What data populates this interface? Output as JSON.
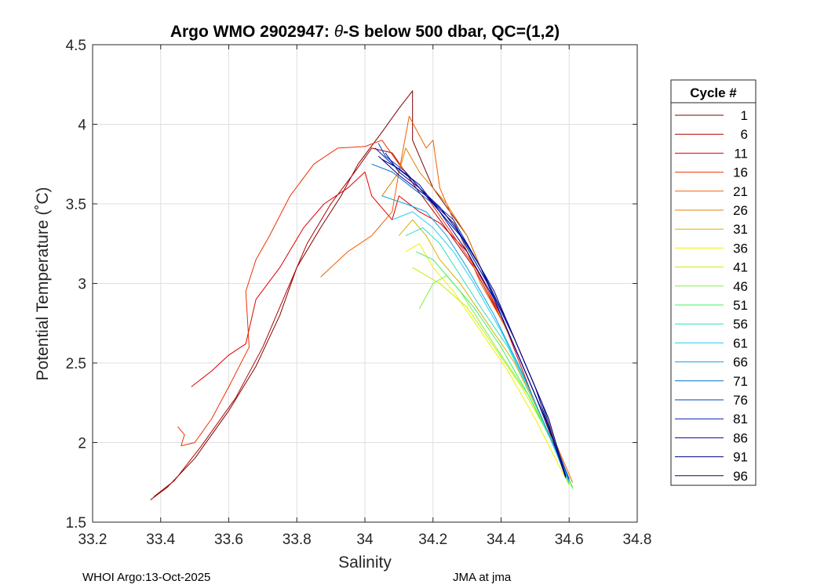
{
  "chart_data": {
    "type": "line",
    "title_prefix": "Argo WMO 2902947: ",
    "title_theta": "θ",
    "title_suffix": "-S below 500 dbar,  QC=(1,2)",
    "xlabel": "Salinity",
    "ylabel": "Potential Temperature (˚C)",
    "xlim": [
      33.2,
      34.8
    ],
    "ylim": [
      1.5,
      4.5
    ],
    "xticks": [
      33.2,
      33.4,
      33.6,
      33.8,
      34,
      34.2,
      34.4,
      34.6,
      34.8
    ],
    "xtick_labels": [
      "33.2",
      "33.4",
      "33.6",
      "33.8",
      "34",
      "34.2",
      "34.4",
      "34.6",
      "34.8"
    ],
    "yticks": [
      1.5,
      2,
      2.5,
      3,
      3.5,
      4,
      4.5
    ],
    "ytick_labels": [
      "1.5",
      "2",
      "2.5",
      "3",
      "3.5",
      "4",
      "4.5"
    ],
    "grid": true,
    "legend": {
      "title": "Cycle #",
      "placement": "right-outside",
      "entries": [
        "1",
        "6",
        "11",
        "16",
        "21",
        "26",
        "31",
        "36",
        "41",
        "46",
        "51",
        "56",
        "61",
        "66",
        "71",
        "76",
        "81",
        "86",
        "91",
        "96"
      ],
      "colors": [
        "#800000",
        "#b00000",
        "#e00000",
        "#f03000",
        "#f06000",
        "#e08000",
        "#d8b000",
        "#f0f000",
        "#c0f000",
        "#80f040",
        "#40f060",
        "#30e0c0",
        "#20d0f0",
        "#10a0e0",
        "#0070d0",
        "#0040c0",
        "#0020b0",
        "#0000a0",
        "#000090",
        "#000080"
      ]
    },
    "series": [
      {
        "name": "1",
        "color": "#800000",
        "points": [
          [
            33.37,
            1.64
          ],
          [
            33.42,
            1.72
          ],
          [
            33.5,
            1.9
          ],
          [
            33.6,
            2.2
          ],
          [
            33.68,
            2.48
          ],
          [
            33.75,
            2.8
          ],
          [
            33.8,
            3.1
          ],
          [
            33.87,
            3.35
          ],
          [
            33.93,
            3.55
          ],
          [
            33.98,
            3.75
          ],
          [
            34.05,
            3.95
          ],
          [
            34.1,
            4.1
          ],
          [
            34.14,
            4.21
          ],
          [
            34.14,
            3.9
          ],
          [
            34.2,
            3.6
          ],
          [
            34.3,
            3.3
          ],
          [
            34.4,
            2.8
          ],
          [
            34.5,
            2.3
          ],
          [
            34.59,
            1.8
          ]
        ]
      },
      {
        "name": "6",
        "color": "#b00000",
        "points": [
          [
            33.38,
            1.66
          ],
          [
            33.44,
            1.76
          ],
          [
            33.52,
            1.98
          ],
          [
            33.62,
            2.28
          ],
          [
            33.7,
            2.6
          ],
          [
            33.77,
            2.95
          ],
          [
            33.83,
            3.25
          ],
          [
            33.9,
            3.5
          ],
          [
            33.97,
            3.7
          ],
          [
            34.02,
            3.85
          ],
          [
            34.08,
            3.82
          ],
          [
            34.15,
            3.6
          ],
          [
            34.22,
            3.4
          ],
          [
            34.32,
            3.1
          ],
          [
            34.42,
            2.7
          ],
          [
            34.52,
            2.2
          ],
          [
            34.59,
            1.78
          ]
        ]
      },
      {
        "name": "11",
        "color": "#e00000",
        "points": [
          [
            33.49,
            2.35
          ],
          [
            33.55,
            2.45
          ],
          [
            33.6,
            2.55
          ],
          [
            33.65,
            2.62
          ],
          [
            33.68,
            2.9
          ],
          [
            33.75,
            3.1
          ],
          [
            33.82,
            3.35
          ],
          [
            33.88,
            3.5
          ],
          [
            33.95,
            3.6
          ],
          [
            34.0,
            3.7
          ],
          [
            34.02,
            3.55
          ],
          [
            34.08,
            3.4
          ],
          [
            34.1,
            3.55
          ],
          [
            34.16,
            3.45
          ],
          [
            34.22,
            3.38
          ],
          [
            34.3,
            3.2
          ],
          [
            34.4,
            2.8
          ],
          [
            34.5,
            2.25
          ],
          [
            34.6,
            1.76
          ]
        ]
      },
      {
        "name": "16",
        "color": "#f03000",
        "points": [
          [
            33.45,
            2.1
          ],
          [
            33.47,
            2.05
          ],
          [
            33.46,
            1.98
          ],
          [
            33.5,
            2.0
          ],
          [
            33.55,
            2.15
          ],
          [
            33.6,
            2.35
          ],
          [
            33.66,
            2.6
          ],
          [
            33.65,
            2.95
          ],
          [
            33.68,
            3.15
          ],
          [
            33.72,
            3.3
          ],
          [
            33.78,
            3.55
          ],
          [
            33.85,
            3.75
          ],
          [
            33.92,
            3.85
          ],
          [
            34.0,
            3.86
          ],
          [
            34.05,
            3.9
          ],
          [
            34.1,
            3.75
          ],
          [
            34.18,
            3.55
          ],
          [
            34.26,
            3.3
          ],
          [
            34.34,
            3.05
          ],
          [
            34.44,
            2.6
          ],
          [
            34.52,
            2.2
          ],
          [
            34.6,
            1.77
          ]
        ]
      },
      {
        "name": "21",
        "color": "#f06000",
        "points": [
          [
            33.87,
            3.04
          ],
          [
            33.95,
            3.2
          ],
          [
            34.02,
            3.3
          ],
          [
            34.08,
            3.45
          ],
          [
            34.1,
            3.7
          ],
          [
            34.13,
            4.05
          ],
          [
            34.18,
            3.85
          ],
          [
            34.2,
            3.9
          ],
          [
            34.22,
            3.6
          ],
          [
            34.26,
            3.4
          ],
          [
            34.34,
            3.0
          ],
          [
            34.42,
            2.7
          ],
          [
            34.5,
            2.3
          ],
          [
            34.61,
            1.75
          ]
        ]
      },
      {
        "name": "26",
        "color": "#e08000",
        "points": [
          [
            34.05,
            3.55
          ],
          [
            34.1,
            3.7
          ],
          [
            34.12,
            3.85
          ],
          [
            34.16,
            3.7
          ],
          [
            34.2,
            3.6
          ],
          [
            34.24,
            3.5
          ],
          [
            34.3,
            3.3
          ],
          [
            34.36,
            3.0
          ],
          [
            34.44,
            2.65
          ],
          [
            34.52,
            2.25
          ],
          [
            34.6,
            1.76
          ]
        ]
      },
      {
        "name": "31",
        "color": "#d8b000",
        "points": [
          [
            34.1,
            3.3
          ],
          [
            34.14,
            3.4
          ],
          [
            34.18,
            3.3
          ],
          [
            34.22,
            3.15
          ],
          [
            34.28,
            3.0
          ],
          [
            34.36,
            2.75
          ],
          [
            34.44,
            2.5
          ],
          [
            34.52,
            2.15
          ],
          [
            34.6,
            1.74
          ]
        ]
      },
      {
        "name": "36",
        "color": "#f0f000",
        "points": [
          [
            34.12,
            3.2
          ],
          [
            34.16,
            3.25
          ],
          [
            34.2,
            3.1
          ],
          [
            34.26,
            2.95
          ],
          [
            34.34,
            2.7
          ],
          [
            34.42,
            2.45
          ],
          [
            34.5,
            2.15
          ],
          [
            34.6,
            1.73
          ]
        ]
      },
      {
        "name": "41",
        "color": "#c0f000",
        "points": [
          [
            34.14,
            3.1
          ],
          [
            34.18,
            3.05
          ],
          [
            34.22,
            3.0
          ],
          [
            34.3,
            2.85
          ],
          [
            34.38,
            2.6
          ],
          [
            34.46,
            2.35
          ],
          [
            34.54,
            2.05
          ],
          [
            34.61,
            1.72
          ]
        ]
      },
      {
        "name": "46",
        "color": "#80f040",
        "points": [
          [
            34.16,
            2.84
          ],
          [
            34.2,
            3.0
          ],
          [
            34.24,
            3.05
          ],
          [
            34.28,
            2.95
          ],
          [
            34.34,
            2.75
          ],
          [
            34.4,
            2.55
          ],
          [
            34.48,
            2.3
          ],
          [
            34.56,
            1.98
          ],
          [
            34.61,
            1.71
          ]
        ]
      },
      {
        "name": "51",
        "color": "#40f060",
        "points": [
          [
            34.15,
            3.2
          ],
          [
            34.2,
            3.15
          ],
          [
            34.26,
            3.0
          ],
          [
            34.32,
            2.85
          ],
          [
            34.4,
            2.6
          ],
          [
            34.48,
            2.3
          ],
          [
            34.55,
            2.0
          ],
          [
            34.61,
            1.72
          ]
        ]
      },
      {
        "name": "56",
        "color": "#30e0c0",
        "points": [
          [
            34.12,
            3.3
          ],
          [
            34.17,
            3.35
          ],
          [
            34.22,
            3.25
          ],
          [
            34.28,
            3.05
          ],
          [
            34.34,
            2.85
          ],
          [
            34.42,
            2.6
          ],
          [
            34.5,
            2.25
          ],
          [
            34.6,
            1.74
          ]
        ]
      },
      {
        "name": "61",
        "color": "#20d0f0",
        "points": [
          [
            34.08,
            3.4
          ],
          [
            34.14,
            3.45
          ],
          [
            34.2,
            3.35
          ],
          [
            34.26,
            3.2
          ],
          [
            34.32,
            3.0
          ],
          [
            34.4,
            2.7
          ],
          [
            34.48,
            2.35
          ],
          [
            34.6,
            1.75
          ]
        ]
      },
      {
        "name": "66",
        "color": "#10a0e0",
        "points": [
          [
            34.05,
            3.55
          ],
          [
            34.12,
            3.5
          ],
          [
            34.18,
            3.45
          ],
          [
            34.24,
            3.3
          ],
          [
            34.3,
            3.1
          ],
          [
            34.38,
            2.8
          ],
          [
            34.46,
            2.45
          ],
          [
            34.6,
            1.76
          ]
        ]
      },
      {
        "name": "71",
        "color": "#0070d0",
        "points": [
          [
            34.02,
            3.75
          ],
          [
            34.08,
            3.7
          ],
          [
            34.14,
            3.6
          ],
          [
            34.2,
            3.5
          ],
          [
            34.28,
            3.3
          ],
          [
            34.36,
            3.0
          ],
          [
            34.44,
            2.6
          ],
          [
            34.52,
            2.2
          ],
          [
            34.6,
            1.77
          ]
        ]
      },
      {
        "name": "76",
        "color": "#0040c0",
        "points": [
          [
            34.04,
            3.88
          ],
          [
            34.06,
            3.8
          ],
          [
            34.12,
            3.7
          ],
          [
            34.18,
            3.55
          ],
          [
            34.26,
            3.4
          ],
          [
            34.34,
            3.1
          ],
          [
            34.42,
            2.7
          ],
          [
            34.5,
            2.3
          ],
          [
            34.6,
            1.77
          ]
        ]
      },
      {
        "name": "81",
        "color": "#0020b0",
        "points": [
          [
            34.03,
            3.85
          ],
          [
            34.08,
            3.75
          ],
          [
            34.14,
            3.65
          ],
          [
            34.2,
            3.5
          ],
          [
            34.28,
            3.3
          ],
          [
            34.36,
            3.0
          ],
          [
            34.44,
            2.65
          ],
          [
            34.52,
            2.25
          ],
          [
            34.59,
            1.78
          ]
        ]
      },
      {
        "name": "86",
        "color": "#0000a0",
        "points": [
          [
            34.06,
            3.82
          ],
          [
            34.1,
            3.7
          ],
          [
            34.16,
            3.6
          ],
          [
            34.22,
            3.48
          ],
          [
            34.3,
            3.25
          ],
          [
            34.38,
            2.95
          ],
          [
            34.46,
            2.55
          ],
          [
            34.54,
            2.15
          ],
          [
            34.59,
            1.79
          ]
        ]
      },
      {
        "name": "91",
        "color": "#000090",
        "points": [
          [
            34.05,
            3.78
          ],
          [
            34.1,
            3.72
          ],
          [
            34.16,
            3.62
          ],
          [
            34.22,
            3.45
          ],
          [
            34.3,
            3.2
          ],
          [
            34.38,
            2.9
          ],
          [
            34.46,
            2.5
          ],
          [
            34.54,
            2.1
          ],
          [
            34.59,
            1.78
          ]
        ]
      },
      {
        "name": "96",
        "color": "#000080",
        "points": [
          [
            34.04,
            3.8
          ],
          [
            34.1,
            3.68
          ],
          [
            34.18,
            3.55
          ],
          [
            34.26,
            3.38
          ],
          [
            34.34,
            3.1
          ],
          [
            34.42,
            2.75
          ],
          [
            34.5,
            2.35
          ],
          [
            34.59,
            1.78
          ]
        ]
      }
    ]
  },
  "footer": {
    "left": "WHOI Argo:13-Oct-2025",
    "right": "JMA at jma"
  }
}
